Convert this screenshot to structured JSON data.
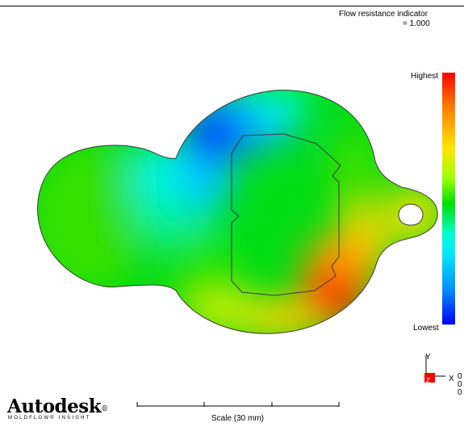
{
  "result": {
    "title": "Flow resistance indicator",
    "value_line": "= 1.000"
  },
  "legend": {
    "high_label": "Highest",
    "low_label": "Lowest",
    "colors": [
      "#ff0000",
      "#ff8000",
      "#ffe600",
      "#9cff00",
      "#00e000",
      "#00ffd0",
      "#00e8ff",
      "#0090ff",
      "#0000ff"
    ]
  },
  "triad": {
    "y_label": "Y",
    "x_label": "X",
    "z_label": "Z",
    "values": [
      "0",
      "0",
      "0"
    ],
    "z_color": "#ff0000"
  },
  "brand": {
    "name": "Autodesk",
    "mark": "®",
    "product": "MOLDFLOW® INSIGHT"
  },
  "scale": {
    "label": "Scale (30 mm)"
  }
}
